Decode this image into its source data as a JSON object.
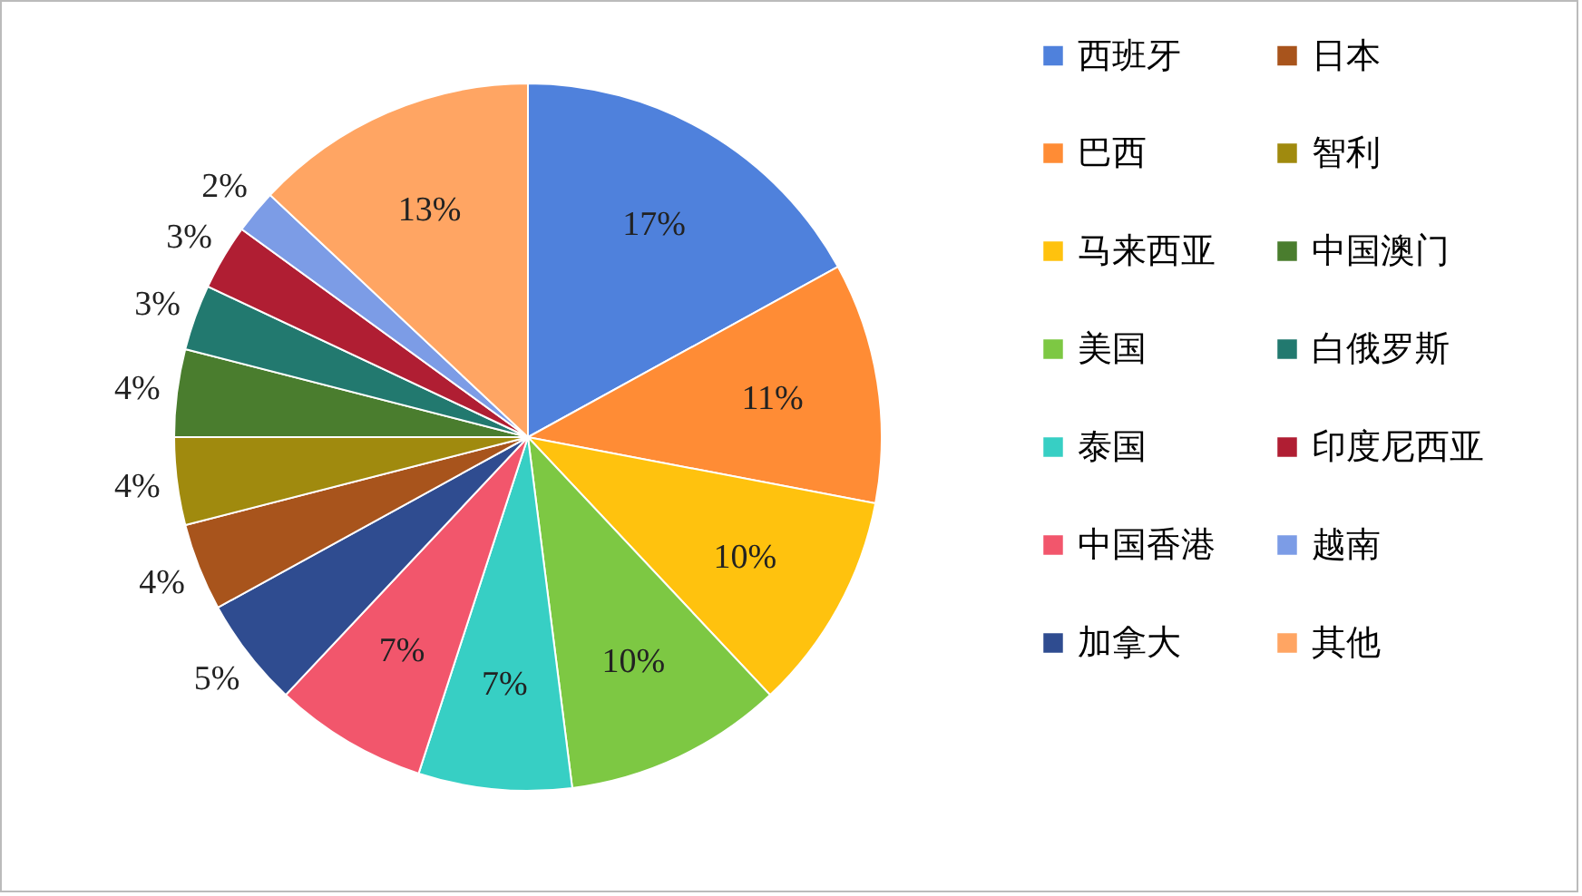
{
  "chart_data": {
    "type": "pie",
    "categories": [
      "西班牙",
      "巴西",
      "马来西亚",
      "美国",
      "泰国",
      "中国香港",
      "加拿大",
      "日本",
      "智利",
      "中国澳门",
      "白俄罗斯",
      "印度尼西亚",
      "越南",
      "其他"
    ],
    "values": [
      17,
      11,
      10,
      10,
      7,
      7,
      5,
      4,
      4,
      4,
      3,
      3,
      2,
      13
    ],
    "value_labels": [
      "17%",
      "11%",
      "10%",
      "10%",
      "7%",
      "7%",
      "5%",
      "4%",
      "4%",
      "4%",
      "3%",
      "3%",
      "2%",
      "13%"
    ],
    "colors": [
      "#4f81dc",
      "#ff8c35",
      "#ffc20e",
      "#7dc843",
      "#37cfc4",
      "#f2566c",
      "#2f4c90",
      "#a8541c",
      "#a08a0e",
      "#4a7d2e",
      "#22796f",
      "#b01e33",
      "#7c9ce6",
      "#ffa563"
    ],
    "legend": "right"
  }
}
